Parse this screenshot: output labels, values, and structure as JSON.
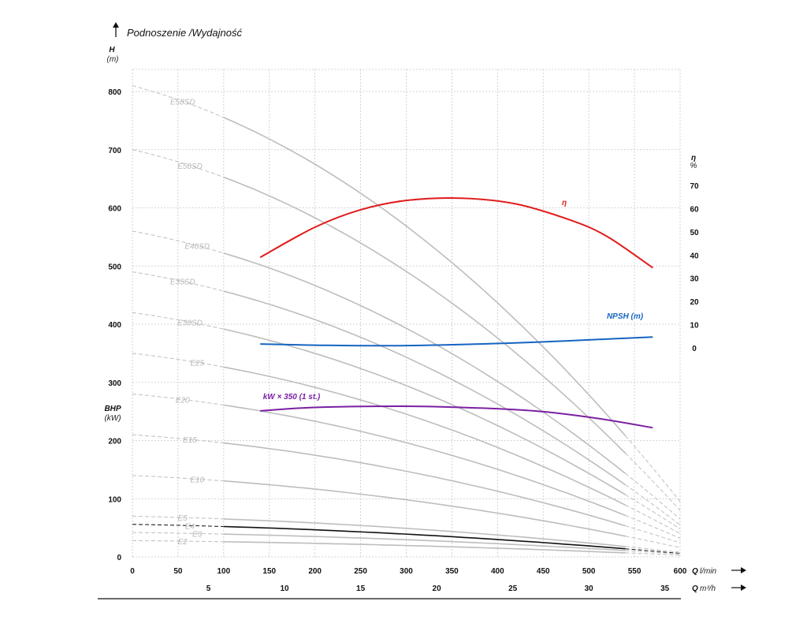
{
  "chart_data": {
    "type": "line",
    "title": "Podnoszenie /Wydajność",
    "y_left": {
      "label": "H",
      "unit": "(m)",
      "ticks": [
        "800",
        "700",
        "600",
        "500",
        "400",
        "300",
        "200",
        "100",
        "0"
      ],
      "range": [
        0,
        800
      ]
    },
    "y_left_secondary": {
      "label": "BHP",
      "unit": "(kW)"
    },
    "y_right": {
      "label": "η",
      "unit": "%",
      "ticks": [
        "70",
        "60",
        "50",
        "40",
        "30",
        "20",
        "10",
        "0"
      ],
      "range": [
        0,
        70
      ]
    },
    "x": {
      "label": "Q",
      "unit": "l/min",
      "ticks": [
        "0",
        "50",
        "100",
        "150",
        "200",
        "250",
        "300",
        "350",
        "400",
        "450",
        "500",
        "550",
        "600"
      ],
      "range": [
        0,
        600
      ]
    },
    "x2": {
      "label": "Q",
      "unit": "m³/h",
      "ticks": [
        "5",
        "10",
        "15",
        "20",
        "25",
        "30",
        "35"
      ]
    },
    "grid": true,
    "pump_curves": [
      {
        "name": "E58SD",
        "shutoff": 810,
        "end": 95,
        "highlight": false
      },
      {
        "name": "E50SD",
        "shutoff": 700,
        "end": 80,
        "highlight": false
      },
      {
        "name": "E40SD",
        "shutoff": 560,
        "end": 65,
        "highlight": false
      },
      {
        "name": "E35SD",
        "shutoff": 490,
        "end": 55,
        "highlight": false
      },
      {
        "name": "E30SD",
        "shutoff": 420,
        "end": 48,
        "highlight": false
      },
      {
        "name": "E25",
        "shutoff": 350,
        "end": 40,
        "highlight": false
      },
      {
        "name": "E20",
        "shutoff": 280,
        "end": 32,
        "highlight": false
      },
      {
        "name": "E15",
        "shutoff": 210,
        "end": 24,
        "highlight": false
      },
      {
        "name": "E10",
        "shutoff": 140,
        "end": 16,
        "highlight": false
      },
      {
        "name": "E5",
        "shutoff": 70,
        "end": 8,
        "highlight": false
      },
      {
        "name": "E4",
        "shutoff": 56,
        "end": 6,
        "highlight": true
      },
      {
        "name": "E3",
        "shutoff": 42,
        "end": 5,
        "highlight": false
      },
      {
        "name": "E2",
        "shutoff": 28,
        "end": 3,
        "highlight": false
      }
    ],
    "efficiency": {
      "name": "η",
      "color": "#e01b1b",
      "axis": "right",
      "x": [
        140,
        200,
        250,
        300,
        360,
        420,
        480,
        520,
        570
      ],
      "y": [
        39,
        52,
        59.5,
        63.5,
        64.5,
        62,
        55,
        48,
        34.5
      ]
    },
    "npsh": {
      "name": "NPSH (m)",
      "color": "#1565c0",
      "axis": "left",
      "x": [
        140,
        200,
        280,
        360,
        440,
        500,
        570
      ],
      "y": [
        366,
        364,
        363,
        365,
        369,
        373,
        378
      ]
    },
    "power": {
      "name": "kW × 350 (1 st.)",
      "color": "#7b1fa2",
      "axis": "left",
      "x": [
        140,
        200,
        290,
        360,
        440,
        510,
        570
      ],
      "y": [
        251,
        257,
        259,
        257,
        251,
        238,
        222
      ]
    }
  }
}
